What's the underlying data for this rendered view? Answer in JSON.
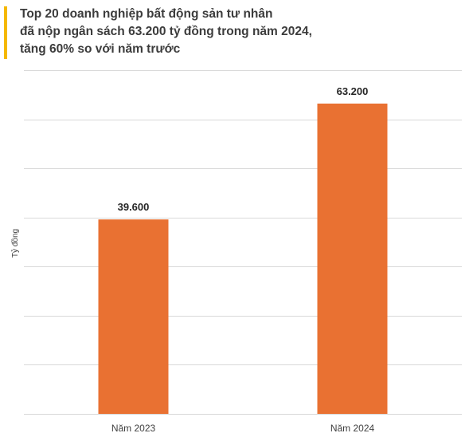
{
  "title_lines": [
    "Top 20 doanh nghiệp bất động sản tư nhân",
    "đã nộp ngân sách 63.200 tỷ  đồng trong năm 2024,",
    "tăng 60% so với năm trước"
  ],
  "colors": {
    "accent": "#f5b800",
    "bar": "#e97132",
    "grid": "#d9d9d9"
  },
  "chart_data": {
    "type": "bar",
    "title": "Top 20 doanh nghiệp bất động sản tư nhân đã nộp ngân sách 63.200 tỷ  đồng trong năm 2024, tăng 60% so với năm trước",
    "categories": [
      "Năm 2023",
      "Năm 2024"
    ],
    "values": [
      39600,
      63200
    ],
    "data_labels": [
      "39.600",
      "63.200"
    ],
    "ylabel": "Tỷ đồng",
    "xlabel": "",
    "ylim": [
      0,
      70000
    ],
    "grid": true,
    "legend": "none"
  }
}
